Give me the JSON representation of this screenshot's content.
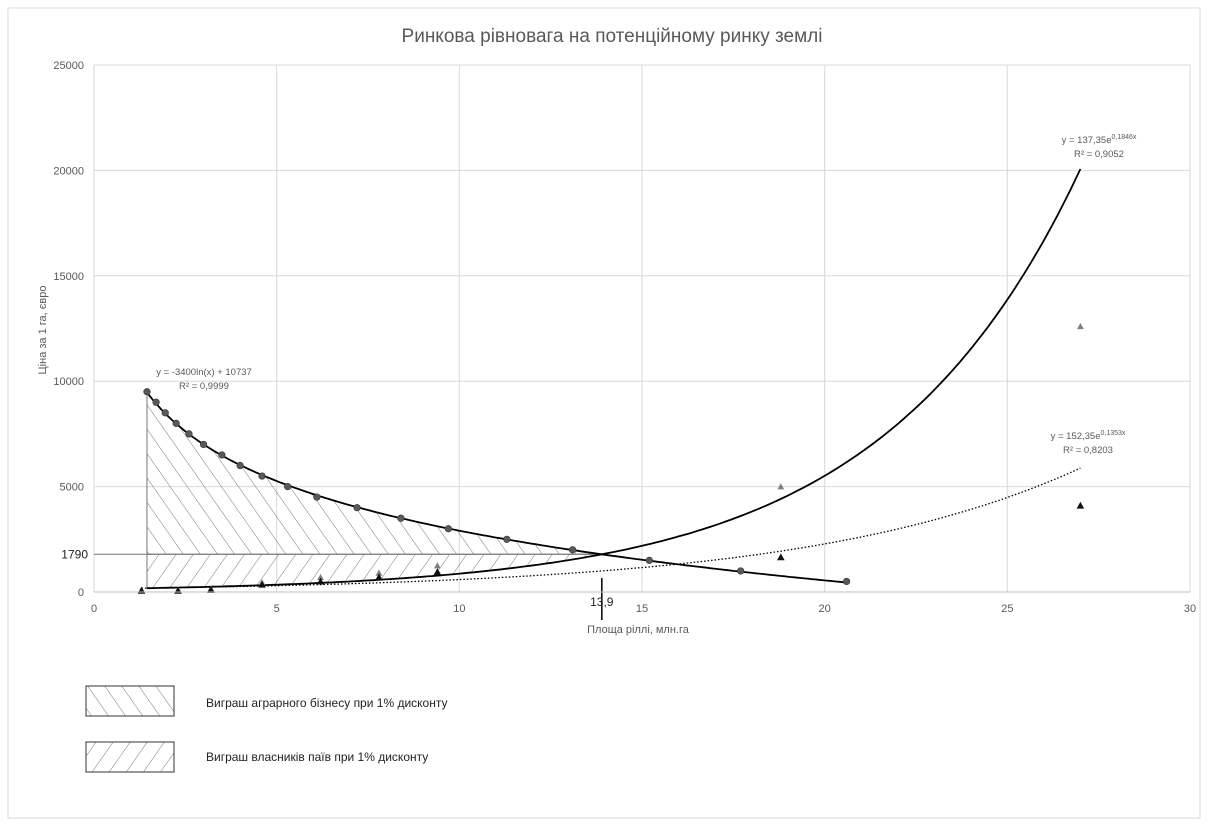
{
  "chart_data": {
    "type": "scatter",
    "title": "Ринкова рівновага на потенційному ринку землі",
    "xlabel": "Площа ріллі, млн.га",
    "ylabel": "Ціна за 1 га, євро",
    "xlim": [
      0,
      30
    ],
    "ylim": [
      0,
      25000
    ],
    "x_ticks": [
      "0",
      "5",
      "10",
      "15",
      "20",
      "25",
      "30"
    ],
    "y_ticks": [
      "0",
      "5000",
      "10000",
      "15000",
      "20000",
      "25000"
    ],
    "grid": true,
    "series": [
      {
        "marker": "circle",
        "x": [
          1.45,
          1.7,
          1.95,
          2.25,
          2.6,
          3.0,
          3.5,
          4.0,
          4.6,
          5.3,
          6.1,
          7.2,
          8.4,
          9.7,
          11.3,
          13.1,
          15.2,
          17.7,
          20.6
        ],
        "y": [
          9500,
          9000,
          8500,
          8000,
          7500,
          7000,
          6500,
          6000,
          5500,
          5000,
          4500,
          4000,
          3500,
          3000,
          2500,
          2000,
          1500,
          1000,
          500
        ]
      },
      {
        "marker": "triangle",
        "x": [
          1.3,
          2.3,
          3.2,
          4.6,
          6.2,
          7.8,
          9.4,
          18.8,
          27.0
        ],
        "y": [
          100,
          100,
          150,
          450,
          700,
          900,
          1250,
          5000,
          12600
        ]
      },
      {
        "marker": "triangle-filled",
        "x": [
          1.3,
          2.3,
          3.2,
          4.6,
          6.2,
          7.8,
          9.4,
          18.8,
          27.0
        ],
        "y": [
          60,
          60,
          100,
          350,
          500,
          700,
          950,
          1650,
          4100
        ]
      }
    ],
    "trendlines": [
      {
        "formula": "y = -3400ln(x) + 10737",
        "r2": "R² = 0,9999",
        "a": -3400,
        "b": 10737,
        "kind": "log",
        "x_range": [
          1.45,
          20.6
        ],
        "style": "solid"
      },
      {
        "formula_base": "y = 137,35e",
        "formula_exp": "0,1846x",
        "r2": "R² = 0,9052",
        "a": 137.35,
        "b": 0.1846,
        "kind": "exp",
        "x_range": [
          1.45,
          27.0
        ],
        "style": "solid"
      },
      {
        "formula_base": "y = 152,35e",
        "formula_exp": "0,1353x",
        "r2": "R² = 0,8203",
        "a": 152.35,
        "b": 0.1353,
        "kind": "exp",
        "x_range": [
          1.3,
          27.0
        ],
        "style": "dotted"
      }
    ],
    "equilibrium": {
      "price": 1790,
      "price_label": "1790",
      "quantity": 13.9,
      "quantity_label": "13,9"
    },
    "legend": [
      {
        "label": "Виграш аграрного бізнесу при 1% дисконту",
        "hatch": "forward"
      },
      {
        "label": "Виграш власників паїв при 1% дисконту",
        "hatch": "backward"
      }
    ]
  }
}
